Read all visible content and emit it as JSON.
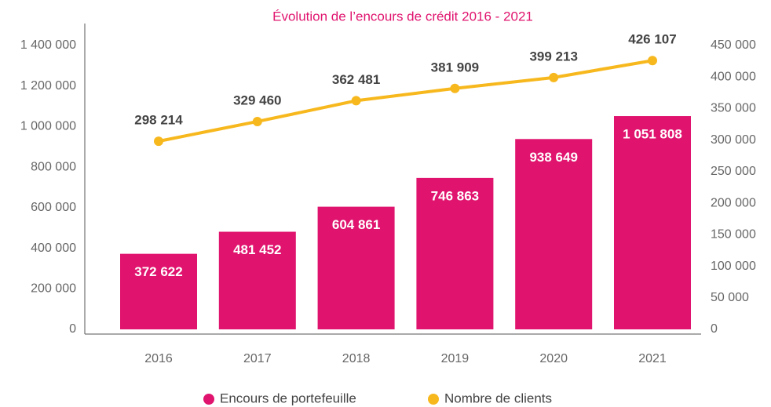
{
  "chart_data": {
    "type": "bar",
    "title": "Évolution de l’encours de crédit 2016 - 2021",
    "categories": [
      "2016",
      "2017",
      "2018",
      "2019",
      "2020",
      "2021"
    ],
    "series": [
      {
        "name": "Encours de portefeuille",
        "type": "bar",
        "color": "#e0146e",
        "values": [
          372622,
          481452,
          604861,
          746863,
          938649,
          1051808
        ],
        "value_labels": [
          "372 622",
          "481 452",
          "604 861",
          "746 863",
          "938 649",
          "1 051 808"
        ]
      },
      {
        "name": "Nombre de clients",
        "type": "line",
        "axis": "y2",
        "color": "#f7b81e",
        "values": [
          298214,
          329460,
          362481,
          381909,
          399213,
          426107
        ],
        "value_labels": [
          "298 214",
          "329 460",
          "362 481",
          "381 909",
          "399 213",
          "426 107"
        ]
      }
    ],
    "ylim": [
      0,
      1400000
    ],
    "yticks": [
      0,
      {
        "value": 200000,
        "label": "200 000"
      },
      {
        "value": 400000,
        "label": "400 000"
      },
      {
        "value": 600000,
        "label": "600 000"
      },
      {
        "value": 800000,
        "label": "800 000"
      },
      {
        "value": 1000000,
        "label": "1 000 000"
      },
      {
        "value": 1200000,
        "label": "1 200 000"
      },
      {
        "value": 1400000,
        "label": "1 400 000"
      }
    ],
    "y2lim": [
      0,
      450000
    ],
    "y2ticks": [
      0,
      {
        "value": 50000,
        "label": "50 000"
      },
      {
        "value": 100000,
        "label": "100 000"
      },
      {
        "value": 150000,
        "label": "150 000"
      },
      {
        "value": 200000,
        "label": "200 000"
      },
      {
        "value": 250000,
        "label": "250 000"
      },
      {
        "value": 300000,
        "label": "300 000"
      },
      {
        "value": 350000,
        "label": "350 000"
      },
      {
        "value": 400000,
        "label": "400 000"
      },
      {
        "value": 450000,
        "label": "450 000"
      }
    ],
    "legend": "bottom"
  }
}
